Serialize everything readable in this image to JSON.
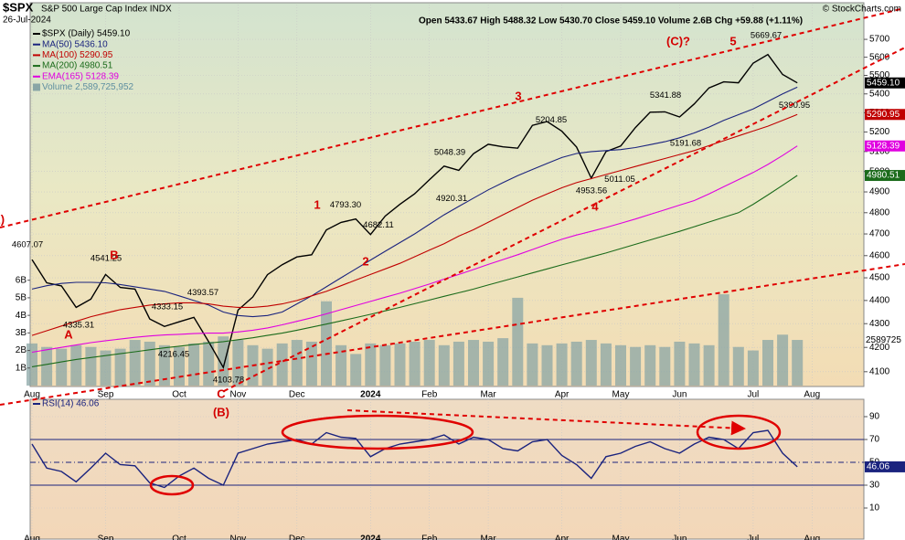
{
  "chart_data": [
    {
      "type": "line",
      "title": "$SPX",
      "subtitle": "S&P 500 Large Cap Index INDX",
      "date": "26-Jul-2024",
      "quote": "Open 5433.67  High 5488.32  Low 5430.70  Close 5459.10  Volume 2.6B  Chg +59.88 (+1.11%)",
      "source": "© StockCharts.com",
      "log_scale": true,
      "grid": true,
      "categories": [
        "Aug",
        null,
        null,
        null,
        null,
        "Sep",
        null,
        null,
        null,
        null,
        "Oct",
        null,
        null,
        null,
        "Nov",
        null,
        null,
        null,
        "Dec",
        null,
        null,
        null,
        null,
        "2024",
        null,
        null,
        null,
        "Feb",
        null,
        null,
        null,
        "Mar",
        null,
        null,
        null,
        null,
        "Apr",
        null,
        null,
        null,
        "May",
        null,
        null,
        null,
        "Jun",
        null,
        null,
        null,
        null,
        "Jul",
        null,
        null,
        null,
        "Aug"
      ],
      "ylim": [
        4044,
        5900
      ],
      "yticks": [
        4100,
        4200,
        4300,
        4400,
        4500,
        4600,
        4700,
        4800,
        4900,
        5000,
        5100,
        5200,
        5300,
        5400,
        5500,
        5600,
        5700
      ],
      "series": [
        {
          "name": "$SPX (Daily) 5459.10",
          "color": "#000000",
          "values": [
            4582,
            4478,
            4464,
            4370,
            4406,
            4515,
            4457,
            4450,
            4320,
            4288,
            4308,
            4327,
            4224,
            4117,
            4358,
            4415,
            4514,
            4559,
            4594,
            4604,
            4719,
            4754,
            4770,
            4697,
            4784,
            4840,
            4891,
            4959,
            5027,
            5006,
            5089,
            5137,
            5124,
            5117,
            5234,
            5254,
            5204,
            5123,
            4967,
            5100,
            5128,
            5223,
            5303,
            5305,
            5278,
            5347,
            5432,
            5465,
            5460,
            5567,
            5615,
            5505,
            5459.1,
            null
          ],
          "last": {
            "value": 5459.1,
            "label": "5459.10"
          }
        },
        {
          "name": "MA(50) 5436.10",
          "color": "#1a237e",
          "values": [
            4450,
            4465,
            4475,
            4480,
            4480,
            4478,
            4470,
            4460,
            4450,
            4440,
            4420,
            4400,
            4380,
            4350,
            4335,
            4330,
            4335,
            4350,
            4385,
            4420,
            4460,
            4500,
            4540,
            4580,
            4620,
            4660,
            4700,
            4745,
            4790,
            4830,
            4870,
            4910,
            4945,
            4980,
            5010,
            5040,
            5070,
            5090,
            5100,
            5105,
            5110,
            5120,
            5135,
            5150,
            5170,
            5195,
            5225,
            5260,
            5290,
            5320,
            5360,
            5400,
            5436.1,
            null
          ]
        },
        {
          "name": "MA(100) 5290.95",
          "color": "#c00000",
          "values": [
            4250,
            4270,
            4290,
            4310,
            4330,
            4345,
            4360,
            4370,
            4380,
            4385,
            4390,
            4390,
            4385,
            4375,
            4370,
            4370,
            4375,
            4385,
            4400,
            4420,
            4440,
            4465,
            4490,
            4515,
            4540,
            4565,
            4595,
            4625,
            4655,
            4690,
            4720,
            4755,
            4790,
            4825,
            4860,
            4890,
            4920,
            4945,
            4965,
            4985,
            5005,
            5025,
            5045,
            5065,
            5085,
            5105,
            5130,
            5155,
            5180,
            5205,
            5230,
            5260,
            5290.95,
            null
          ],
          "last": {
            "value": 5290.95,
            "label": "5290.95"
          }
        },
        {
          "name": "MA(200) 4980.51",
          "color": "#1b6b1b",
          "values": [
            4120,
            4130,
            4140,
            4150,
            4158,
            4166,
            4174,
            4182,
            4190,
            4198,
            4205,
            4212,
            4218,
            4224,
            4232,
            4240,
            4250,
            4260,
            4272,
            4285,
            4298,
            4312,
            4326,
            4340,
            4355,
            4370,
            4386,
            4402,
            4418,
            4434,
            4450,
            4468,
            4486,
            4504,
            4522,
            4540,
            4558,
            4576,
            4594,
            4612,
            4632,
            4652,
            4672,
            4692,
            4712,
            4734,
            4756,
            4778,
            4800,
            4840,
            4885,
            4932,
            4980.51,
            null
          ],
          "last": {
            "value": 4980.51,
            "label": "4980.51"
          }
        },
        {
          "name": "EMA(165) 5128.39",
          "color": "#e000e0",
          "values": [
            4180,
            4190,
            4200,
            4210,
            4220,
            4228,
            4235,
            4242,
            4248,
            4252,
            4255,
            4258,
            4260,
            4260,
            4265,
            4272,
            4282,
            4295,
            4310,
            4325,
            4342,
            4360,
            4378,
            4396,
            4414,
            4432,
            4452,
            4472,
            4494,
            4515,
            4537,
            4560,
            4582,
            4604,
            4628,
            4652,
            4675,
            4695,
            4712,
            4730,
            4750,
            4770,
            4792,
            4814,
            4836,
            4858,
            4890,
            4925,
            4960,
            4995,
            5035,
            5080,
            5128.39,
            null
          ],
          "last": {
            "value": 5128.39,
            "label": "5128.39"
          }
        }
      ],
      "volume": {
        "name": "Volume 2,589,725,952",
        "color": "#8aa6a6",
        "ylim": [
          0,
          21.7
        ],
        "yticks": [
          {
            "value": 1,
            "label": "1B"
          },
          {
            "value": 2,
            "label": "2B"
          },
          {
            "value": 3,
            "label": "3B"
          },
          {
            "value": 4,
            "label": "4B"
          },
          {
            "value": 5,
            "label": "5B"
          },
          {
            "value": 6,
            "label": "6B"
          }
        ],
        "values": [
          2.4,
          2.2,
          2.1,
          2.3,
          2.2,
          2.0,
          2.1,
          2.6,
          2.5,
          2.3,
          2.2,
          2.4,
          2.5,
          2.8,
          2.6,
          2.3,
          2.1,
          2.4,
          2.6,
          2.5,
          4.8,
          2.3,
          1.8,
          2.4,
          2.3,
          2.4,
          2.5,
          2.6,
          2.3,
          2.5,
          2.6,
          2.5,
          2.7,
          5.0,
          2.4,
          2.3,
          2.4,
          2.5,
          2.6,
          2.4,
          2.3,
          2.2,
          2.3,
          2.2,
          2.5,
          2.4,
          2.3,
          5.2,
          2.2,
          2.0,
          2.6,
          2.9,
          2.6,
          null
        ],
        "last": {
          "value": 2.589725952,
          "label": "2589725"
        }
      },
      "price_labels": [
        {
          "value": 4607.07,
          "label": "4607.07"
        },
        {
          "value": 4541.25,
          "label": "4541.25"
        },
        {
          "value": 4335.31,
          "label": "4335.31"
        },
        {
          "value": 4333.15,
          "label": "4333.15"
        },
        {
          "value": 4393.57,
          "label": "4393.57"
        },
        {
          "value": 4216.45,
          "label": "4216.45"
        },
        {
          "value": 4103.78,
          "label": "4103.78"
        },
        {
          "value": 4793.3,
          "label": "4793.30"
        },
        {
          "value": 4682.11,
          "label": "4682.11"
        },
        {
          "value": 5048.39,
          "label": "5048.39"
        },
        {
          "value": 4920.31,
          "label": "4920.31"
        },
        {
          "value": 5204.85,
          "label": "5204.85"
        },
        {
          "value": 4953.56,
          "label": "4953.56"
        },
        {
          "value": 5011.05,
          "label": "5011.05"
        },
        {
          "value": 5341.88,
          "label": "5341.88"
        },
        {
          "value": 5191.68,
          "label": "5191.68"
        },
        {
          "value": 5669.67,
          "label": "5669.67"
        },
        {
          "value": 5390.95,
          "label": "5390.95"
        }
      ],
      "annotations": [
        "(A)",
        "A",
        "B",
        "C",
        "(B)",
        "1",
        "2",
        "3",
        "4",
        "5",
        "(C)?"
      ]
    },
    {
      "type": "line",
      "grid": true,
      "categories": [
        "Aug",
        null,
        null,
        null,
        null,
        "Sep",
        null,
        null,
        null,
        null,
        "Oct",
        null,
        null,
        null,
        "Nov",
        null,
        null,
        null,
        "Dec",
        null,
        null,
        null,
        null,
        "2024",
        null,
        null,
        null,
        "Feb",
        null,
        null,
        null,
        "Mar",
        null,
        null,
        null,
        null,
        "Apr",
        null,
        null,
        null,
        "May",
        null,
        null,
        null,
        "Jun",
        null,
        null,
        null,
        null,
        "Jul",
        null,
        null,
        null,
        "Aug"
      ],
      "ylim": [
        -17.2,
        105.2
      ],
      "yticks": [
        10,
        30,
        50,
        70,
        90
      ],
      "levels": [
        70,
        50,
        30
      ],
      "series": [
        {
          "name": "RSI(14) 46.06",
          "color": "#1a237e",
          "values": [
            66,
            45,
            42,
            33,
            45,
            58,
            48,
            47,
            32,
            28,
            38,
            45,
            36,
            30,
            58,
            62,
            66,
            68,
            70,
            66,
            76,
            72,
            71,
            55,
            62,
            66,
            68,
            70,
            74,
            66,
            72,
            70,
            62,
            60,
            68,
            70,
            56,
            48,
            36,
            55,
            58,
            64,
            68,
            62,
            58,
            66,
            72,
            70,
            62,
            76,
            78,
            58,
            46.06,
            null
          ],
          "last": {
            "value": 46.06,
            "label": "46.06"
          }
        }
      ]
    }
  ]
}
